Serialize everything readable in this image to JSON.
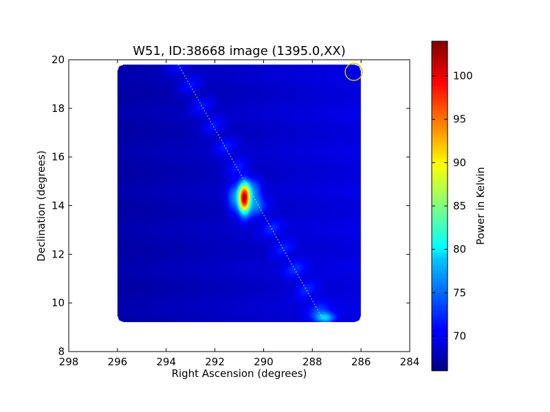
{
  "chart_data": {
    "type": "heatmap",
    "title": "W51, ID:38668 image (1395.0,XX)",
    "xlabel": "Right Ascension (degrees)",
    "ylabel": "Declination (degrees)",
    "colorbar_label": "Power in Kelvin",
    "xlim": [
      298,
      284
    ],
    "ylim": [
      8,
      20
    ],
    "x_ticks": [
      298,
      296,
      294,
      292,
      290,
      288,
      286,
      284
    ],
    "y_ticks": [
      8,
      10,
      12,
      14,
      16,
      18,
      20
    ],
    "colorbar_range": [
      66,
      104
    ],
    "colorbar_ticks": [
      70,
      75,
      80,
      85,
      90,
      95,
      100
    ],
    "colormap": "jet",
    "data_extent": {
      "ra": [
        296,
        286
      ],
      "dec": [
        9.2,
        19.8
      ]
    },
    "background_level": 69,
    "peaks": [
      {
        "ra": 290.8,
        "dec": 14.3,
        "value": 102
      },
      {
        "ra": 287.5,
        "dec": 9.4,
        "value": 78
      }
    ],
    "scan_line": {
      "from": [
        293.5,
        19.8
      ],
      "to": [
        287.6,
        9.4
      ]
    },
    "marker_circle": {
      "ra": 286.3,
      "dec": 19.5,
      "radius_deg": 0.35,
      "color": "#d4c400"
    }
  }
}
